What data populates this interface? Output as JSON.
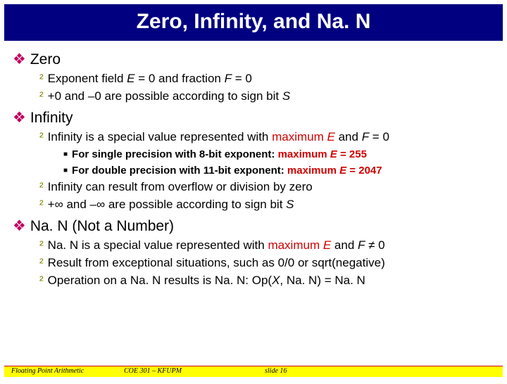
{
  "title": "Zero, Infinity, and Na. N",
  "sections": [
    {
      "heading": "Zero",
      "items": [
        {
          "pre": "Exponent field ",
          "em1": "E",
          "mid1": " = 0 and fraction ",
          "em2": "F",
          "post": " = 0"
        },
        {
          "pre": "+0 and –0 are possible according to sign bit ",
          "em1": "S",
          "mid1": "",
          "em2": "",
          "post": ""
        }
      ]
    },
    {
      "heading": "Infinity",
      "items": [
        {
          "pre": "Infinity is a special value represented with ",
          "red1": "maximum ",
          "redem1": "E",
          "mid1": " and ",
          "em2": "F",
          "post": " = 0",
          "sub": [
            {
              "t1": "For ",
              "b1": "single precision",
              "t2": " with 8-bit exponent: ",
              "r1": "maximum ",
              "ri1": "E",
              "r2": " = 255"
            },
            {
              "t1": "For ",
              "b1": "double precision",
              "t2": " with 11-bit exponent: ",
              "r1": "maximum ",
              "ri1": "E",
              "r2": " = 2047"
            }
          ]
        },
        {
          "pre": "Infinity can result from overflow or division by zero",
          "em1": "",
          "mid1": "",
          "em2": "",
          "post": ""
        },
        {
          "pre": "+∞ and –∞ are possible according to sign bit ",
          "em1": "S",
          "mid1": "",
          "em2": "",
          "post": ""
        }
      ]
    },
    {
      "heading": "Na. N (Not a Number)",
      "items": [
        {
          "pre": "Na. N is a special value represented with ",
          "red1": "maximum ",
          "redem1": "E",
          "mid1": " and ",
          "em2": "F",
          "post": " ≠ 0"
        },
        {
          "pre": "Result from exceptional situations, such as 0/0 or sqrt(negative)",
          "em1": "",
          "mid1": "",
          "em2": "",
          "post": ""
        },
        {
          "pre": "Operation on a Na. N results is Na. N: Op(",
          "em1": "X",
          "mid1": ", Na. N) = Na. N",
          "em2": "",
          "post": ""
        }
      ]
    }
  ],
  "footer": {
    "left": "Floating Point Arithmetic",
    "center": "COE 301 – KFUPM",
    "right": "slide 16"
  },
  "colors": {
    "title_bg": "#000080",
    "diamond": "#c00060",
    "lvl2_bullet": "#808000",
    "red": "#d00000",
    "footer_bg": "#ffff00"
  }
}
